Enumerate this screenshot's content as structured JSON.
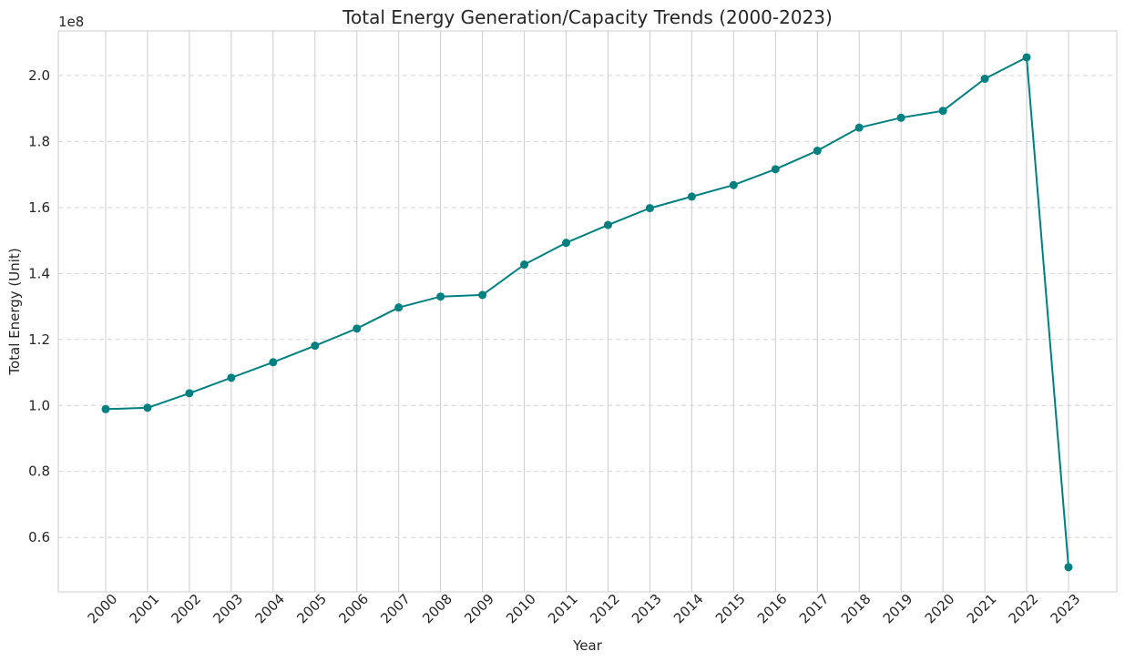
{
  "chart_data": {
    "type": "line",
    "title": "Total Energy Generation/Capacity Trends (2000-2023)",
    "xlabel": "Year",
    "ylabel": "Total Energy (Unit)",
    "y_offset_label": "1e8",
    "x": [
      "2000",
      "2001",
      "2002",
      "2003",
      "2004",
      "2005",
      "2006",
      "2007",
      "2008",
      "2009",
      "2010",
      "2011",
      "2012",
      "2013",
      "2014",
      "2015",
      "2016",
      "2017",
      "2018",
      "2019",
      "2020",
      "2021",
      "2022",
      "2023"
    ],
    "series": [
      {
        "values": [
          0.989,
          0.993,
          1.037,
          1.084,
          1.131,
          1.181,
          1.233,
          1.297,
          1.33,
          1.335,
          1.427,
          1.493,
          1.547,
          1.598,
          1.633,
          1.668,
          1.716,
          1.772,
          1.842,
          1.872,
          1.893,
          1.99,
          2.055,
          0.51
        ],
        "color": "#008080",
        "marker": "circle"
      }
    ],
    "ylim": [
      0.435,
      2.135
    ],
    "yticks": [
      0.6,
      0.8,
      1.0,
      1.2,
      1.4,
      1.6,
      1.8,
      2.0
    ],
    "ytick_labels": [
      "0.6",
      "0.8",
      "1.0",
      "1.2",
      "1.4",
      "1.6",
      "1.8",
      "2.0"
    ],
    "y_scale_note": "values in units of 1e8",
    "grid": true,
    "x_tick_rotation": 45
  }
}
